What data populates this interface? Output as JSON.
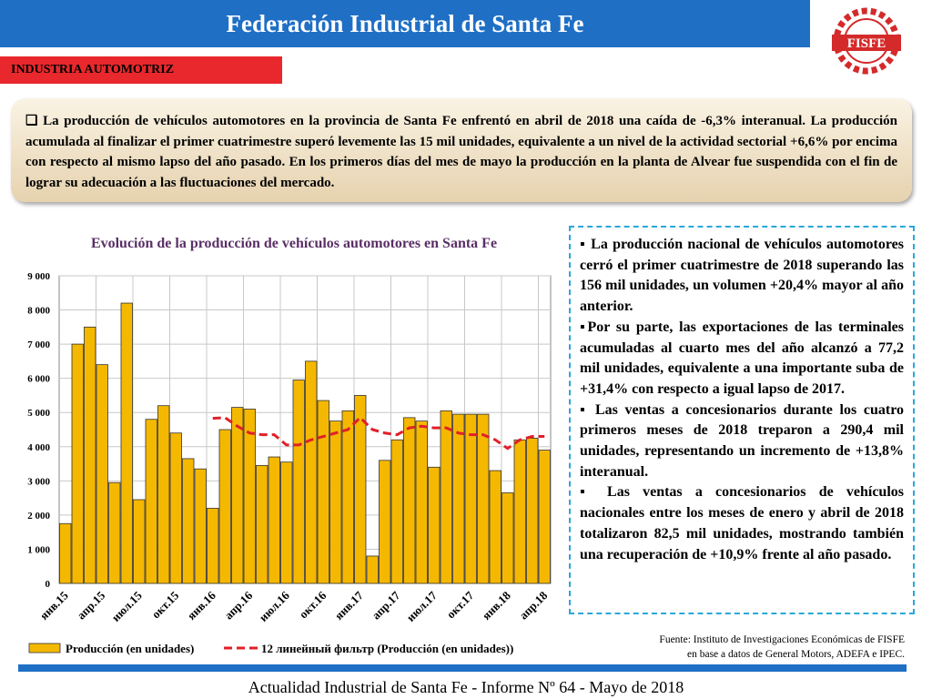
{
  "header": {
    "title": "Federación Industrial de Santa Fe",
    "logo": "FISFE"
  },
  "section": "INDUSTRIA AUTOMOTRIZ",
  "summary": "La producción de vehículos automotores en la provincia de Santa Fe enfrentó en abril de 2018 una caída de -6,3% interanual. La producción acumulada al finalizar el primer cuatrimestre superó levemente las 15 mil unidades, equivalente a un nivel de la actividad sectorial +6,6% por encima con respecto al mismo lapso del año pasado. En los primeros días del mes de mayo la producción en la planta de Alvear fue suspendida con el fin de lograr su adecuación a las fluctuaciones del mercado.",
  "bullets": [
    "La producción nacional de vehículos automotores cerró el primer cuatrimestre de 2018 superando las 156 mil unidades, un volumen +20,4% mayor al año anterior.",
    "Por su parte, las exportaciones de las terminales acumuladas al cuarto mes del año alcanzó a 77,2 mil unidades, equivalente a una importante suba de +31,4% con respecto a igual lapso de 2017.",
    "Las ventas a concesionarios durante los cuatro primeros meses de 2018 treparon a 290,4 mil unidades, representando un incremento de +13,8% interanual.",
    "Las ventas a concesionarios de vehículos nacionales entre los meses de enero y abril de 2018 totalizaron 82,5 mil unidades, mostrando también una recuperación de +10,9% frente al año pasado."
  ],
  "source": [
    "Fuente: Instituto de Investigaciones Económicas de FISFE",
    "en base a datos de General Motors, ADEFA e IPEC."
  ],
  "footer": "Actualidad Industrial de Santa Fe - Informe Nº 64 - Mayo de 2018",
  "chart_data": {
    "type": "bar",
    "title": "Evolución de la producción de vehículos automotores en Santa Fe",
    "categories": [
      "янв.15",
      null,
      null,
      "апр.15",
      null,
      null,
      "июл.15",
      null,
      null,
      "окт.15",
      null,
      null,
      "янв.16",
      null,
      null,
      "апр.16",
      null,
      null,
      "июл.16",
      null,
      null,
      "окт.16",
      null,
      null,
      "янв.17",
      null,
      null,
      "апр.17",
      null,
      null,
      "июл.17",
      null,
      null,
      "окт.17",
      null,
      null,
      "янв.18",
      null,
      null,
      "апр.18"
    ],
    "series": [
      {
        "name": "Producción (en unidades)",
        "color": "#f5b800",
        "values": [
          1750,
          7000,
          7500,
          6400,
          2950,
          8200,
          2450,
          4800,
          5200,
          4400,
          3650,
          3350,
          2200,
          4500,
          5150,
          5100,
          3450,
          3700,
          3550,
          5950,
          6500,
          5350,
          4750,
          5050,
          5500,
          800,
          3600,
          4200,
          4850,
          4750,
          3400,
          5050,
          4950,
          4950,
          4950,
          3300,
          2650,
          4200,
          4250,
          3900
        ]
      },
      {
        "name": "12 линейный фильтр (Producción (en unidades))",
        "color": "#e0202a",
        "type": "line",
        "values": [
          null,
          null,
          null,
          null,
          null,
          null,
          null,
          null,
          null,
          null,
          null,
          null,
          4830,
          4850,
          4600,
          4400,
          4350,
          4350,
          4050,
          4050,
          4200,
          4300,
          4400,
          4500,
          4850,
          4500,
          4400,
          4350,
          4550,
          4600,
          4550,
          4550,
          4400,
          4350,
          4350,
          4200,
          3950,
          4200,
          4300,
          4300
        ]
      }
    ],
    "ylim": [
      0,
      9000
    ],
    "yticks": [
      0,
      {
        "value": 1000,
        "label": "1 000"
      },
      {
        "value": 2000,
        "label": "2 000"
      },
      {
        "value": 3000,
        "label": "3 000"
      },
      {
        "value": 4000,
        "label": "4 000"
      },
      {
        "value": 5000,
        "label": "5 000"
      },
      {
        "value": 6000,
        "label": "6 000"
      },
      {
        "value": 7000,
        "label": "7 000"
      },
      {
        "value": 8000,
        "label": "8 000"
      },
      {
        "value": 9000,
        "label": "9 000"
      }
    ],
    "grid": true
  }
}
